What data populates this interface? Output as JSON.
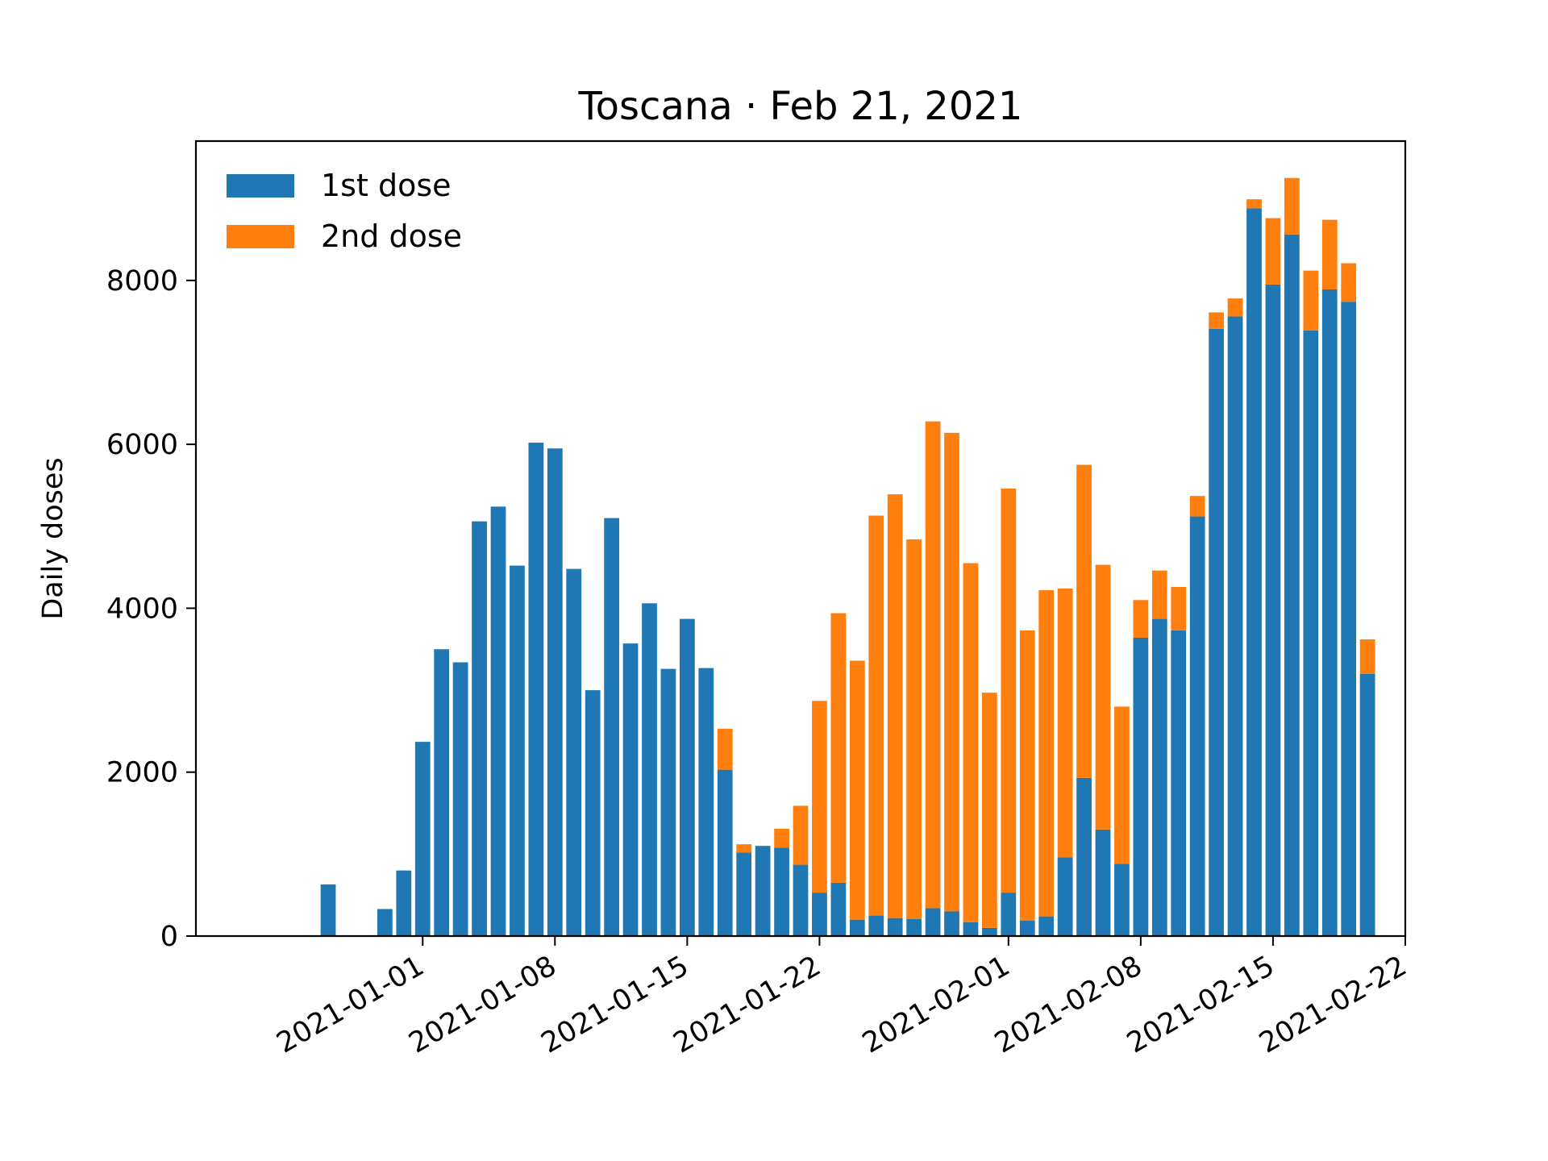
{
  "chart_data": {
    "type": "bar",
    "stacked": true,
    "title": "Toscana · Feb 21, 2021",
    "xlabel": "",
    "ylabel": "Daily doses",
    "ylim": [
      0,
      9700
    ],
    "xlim": [
      "2020-12-20",
      "2021-02-22"
    ],
    "yticks": [
      0,
      2000,
      4000,
      6000,
      8000
    ],
    "xticks": [
      "2021-01-01",
      "2021-01-08",
      "2021-01-15",
      "2021-01-22",
      "2021-02-01",
      "2021-02-08",
      "2021-02-15",
      "2021-02-22"
    ],
    "legend_position": "top-left",
    "grid": false,
    "x": [
      "2020-12-27",
      "2020-12-28",
      "2020-12-29",
      "2020-12-30",
      "2020-12-31",
      "2021-01-01",
      "2021-01-02",
      "2021-01-03",
      "2021-01-04",
      "2021-01-05",
      "2021-01-06",
      "2021-01-07",
      "2021-01-08",
      "2021-01-09",
      "2021-01-10",
      "2021-01-11",
      "2021-01-12",
      "2021-01-13",
      "2021-01-14",
      "2021-01-15",
      "2021-01-16",
      "2021-01-17",
      "2021-01-18",
      "2021-01-19",
      "2021-01-20",
      "2021-01-21",
      "2021-01-22",
      "2021-01-23",
      "2021-01-24",
      "2021-01-25",
      "2021-01-26",
      "2021-01-27",
      "2021-01-28",
      "2021-01-29",
      "2021-01-30",
      "2021-01-31",
      "2021-02-01",
      "2021-02-02",
      "2021-02-03",
      "2021-02-04",
      "2021-02-05",
      "2021-02-06",
      "2021-02-07",
      "2021-02-08",
      "2021-02-09",
      "2021-02-10",
      "2021-02-11",
      "2021-02-12",
      "2021-02-13",
      "2021-02-14",
      "2021-02-15",
      "2021-02-16",
      "2021-02-17",
      "2021-02-18",
      "2021-02-19",
      "2021-02-20"
    ],
    "series": [
      {
        "name": "1st dose",
        "color": "#1f77b4",
        "values": [
          630,
          0,
          0,
          330,
          800,
          2370,
          3500,
          3340,
          5060,
          5240,
          4520,
          6020,
          5950,
          4480,
          3000,
          5100,
          3570,
          4060,
          3260,
          3870,
          3270,
          2030,
          1020,
          1100,
          1080,
          870,
          530,
          650,
          200,
          250,
          220,
          210,
          340,
          300,
          170,
          100,
          530,
          190,
          240,
          960,
          1930,
          1300,
          880,
          3640,
          3870,
          3730,
          5120,
          7410,
          7560,
          8880,
          7950,
          8560,
          7390,
          7890,
          7740,
          3200
        ]
      },
      {
        "name": "2nd dose",
        "color": "#ff7f0e",
        "values": [
          0,
          0,
          0,
          0,
          0,
          0,
          0,
          0,
          0,
          0,
          0,
          0,
          0,
          0,
          0,
          0,
          0,
          0,
          0,
          0,
          0,
          500,
          100,
          0,
          230,
          720,
          2340,
          3290,
          3160,
          4880,
          5170,
          4630,
          5940,
          5840,
          4380,
          2870,
          4930,
          3540,
          3980,
          3280,
          3820,
          3230,
          1920,
          460,
          590,
          530,
          250,
          200,
          220,
          110,
          810,
          690,
          730,
          850,
          470,
          420
        ]
      }
    ]
  }
}
